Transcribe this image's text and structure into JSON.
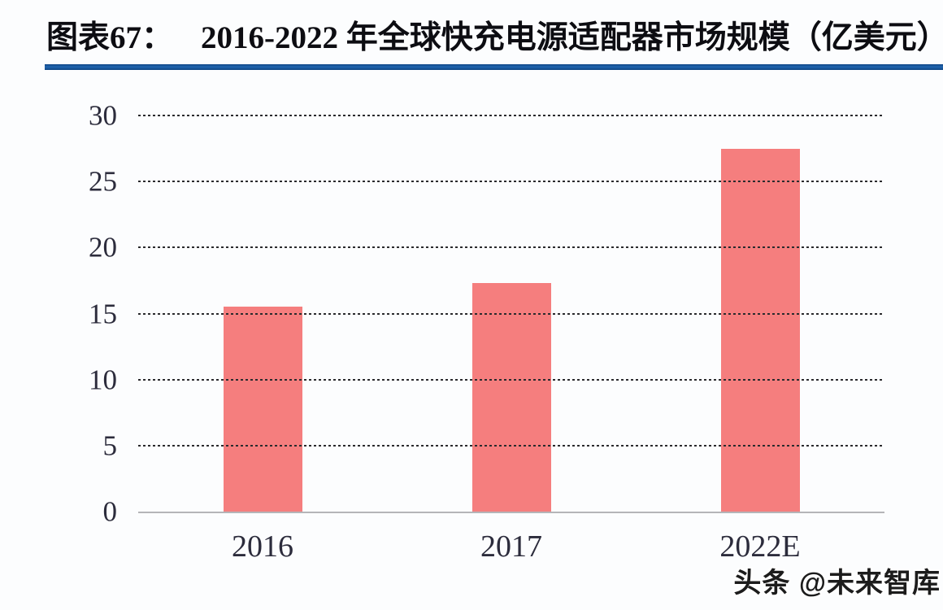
{
  "header": {
    "title_label": "图表67：",
    "title_text": "2016-2022 年全球快充电源适配器市场规模（亿美元）",
    "underline_color": "#1659a4"
  },
  "chart_data": {
    "type": "bar",
    "categories": [
      "2016",
      "2017",
      "2022E"
    ],
    "values": [
      15.5,
      17.3,
      27.5
    ],
    "title": "2016-2022 年全球快充电源适配器市场规模（亿美元）",
    "xlabel": "",
    "ylabel": "",
    "ylim": [
      0,
      30
    ],
    "yticks": [
      0,
      5,
      10,
      15,
      20,
      25,
      30
    ],
    "bar_color": "#f57e7e",
    "gridlines": "horizontal-dashed",
    "legend_position": "none"
  },
  "watermark": {
    "text": "头条 @未来智库"
  }
}
